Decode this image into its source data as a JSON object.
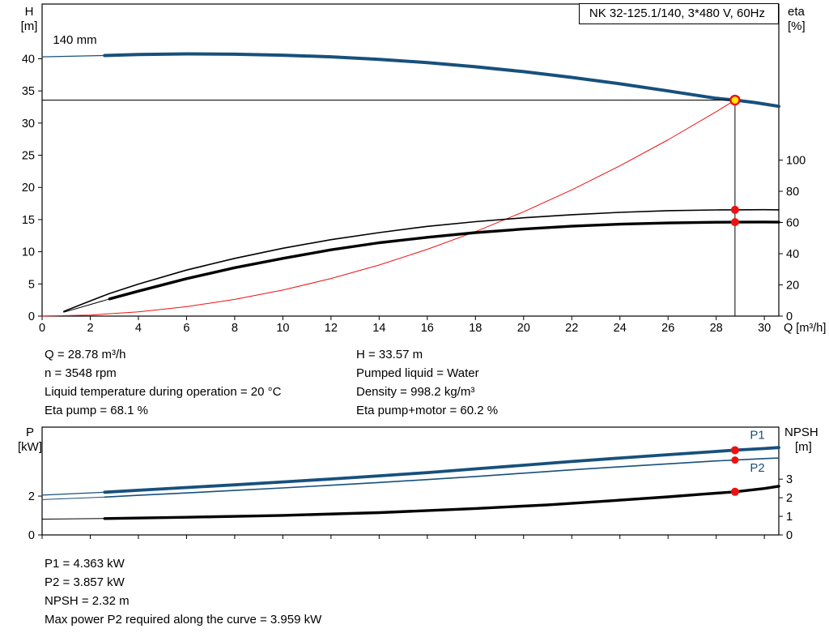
{
  "header": {
    "title_box": "NK 32-125.1/140, 3*480 V, 60Hz"
  },
  "info_left": [
    "Q = 28.78 m³/h",
    "n = 3548 rpm",
    "Liquid temperature during operation = 20 °C",
    "Eta pump = 68.1 %"
  ],
  "info_right": [
    "H = 33.57 m",
    "Pumped liquid = Water",
    "Density = 998.2 kg/m³",
    "Eta pump+motor = 60.2 %"
  ],
  "results": [
    "P1 = 4.363 kW",
    "P2 = 3.857 kW",
    "NPSH = 2.32 m",
    "Max power P2 required along the curve = 3.959 kW"
  ],
  "colors": {
    "curve_blue": "#17507c",
    "curve_black": "#000000",
    "curve_red": "#ee1111",
    "marker_red": "#ee1111",
    "marker_yellow": "#ffe800"
  },
  "chart_data": [
    {
      "name": "hq-eta-chart",
      "type": "line",
      "xlabel": "Q [m³/h]",
      "ylabel_left": [
        "H",
        "[m]"
      ],
      "ylabel_right": [
        "eta",
        "[%]"
      ],
      "xlim": [
        0,
        30.6
      ],
      "ylim_left": [
        0,
        48.5
      ],
      "ylim_right": [
        0,
        200
      ],
      "x_ticks": [
        0,
        2,
        4,
        6,
        8,
        10,
        12,
        14,
        16,
        18,
        20,
        22,
        24,
        26,
        28,
        30
      ],
      "x_tick_labels": true,
      "y_ticks_left": [
        0,
        5,
        10,
        15,
        20,
        25,
        30,
        35,
        40
      ],
      "y_ticks_right": [
        0,
        20,
        40,
        60,
        80,
        100
      ],
      "crosshair": {
        "x": 28.78,
        "y": 33.57
      },
      "series": [
        {
          "name": "system-curve",
          "axis": "left",
          "color": "#ee1111",
          "width": 1,
          "x": [
            0,
            2,
            4,
            6,
            8,
            10,
            12,
            14,
            16,
            18,
            20,
            22,
            24,
            26,
            28,
            28.78
          ],
          "y": [
            0,
            0.16,
            0.65,
            1.46,
            2.59,
            4.05,
            5.84,
            7.94,
            10.38,
            13.13,
            16.21,
            19.62,
            23.35,
            27.4,
            31.77,
            33.57
          ]
        },
        {
          "name": "eta-pump-curve",
          "axis": "right",
          "color": "#000000",
          "width": 1.6,
          "x": [
            0.9,
            1.8,
            2.8,
            4,
            6,
            8,
            10,
            12,
            14,
            16,
            18,
            20,
            22,
            24,
            26,
            28,
            28.78,
            30,
            30.6
          ],
          "y": [
            3,
            8.5,
            14.5,
            20.5,
            29.5,
            37,
            43.5,
            49,
            53.5,
            57.5,
            60.5,
            63,
            65,
            66.5,
            67.6,
            68.05,
            68.1,
            68.2,
            68.1
          ]
        },
        {
          "name": "eta-pump-motor-lead",
          "axis": "right",
          "color": "#000000",
          "width": 1,
          "x": [
            0.9,
            1.8,
            2.8
          ],
          "y": [
            2.5,
            6.5,
            11
          ]
        },
        {
          "name": "eta-pump-motor-curve",
          "axis": "right",
          "color": "#000000",
          "width": 3.4,
          "x": [
            2.8,
            4,
            6,
            8,
            10,
            12,
            14,
            16,
            18,
            20,
            22,
            24,
            26,
            28,
            28.78,
            30,
            30.6
          ],
          "y": [
            11,
            16,
            24,
            31,
            37,
            42.5,
            47,
            50.5,
            53.5,
            55.8,
            57.6,
            58.9,
            59.7,
            60.15,
            60.2,
            60.3,
            60.2
          ]
        },
        {
          "name": "pump-curve-lead",
          "axis": "left",
          "color": "#17507c",
          "width": 1.2,
          "x": [
            0,
            2.6
          ],
          "y": [
            40.3,
            40.5
          ]
        },
        {
          "name": "pump-curve-140mm",
          "axis": "left",
          "color": "#17507c",
          "width": 4,
          "x": [
            2.6,
            4,
            6,
            8,
            10,
            12,
            14,
            16,
            18,
            20,
            22,
            24,
            26,
            28,
            28.78,
            29.6,
            30.6
          ],
          "y": [
            40.5,
            40.65,
            40.75,
            40.7,
            40.55,
            40.3,
            39.9,
            39.4,
            38.75,
            38.0,
            37.1,
            36.1,
            35.0,
            33.85,
            33.57,
            33.2,
            32.6
          ]
        }
      ],
      "markers": [
        {
          "name": "eta-pump-point",
          "axis": "right",
          "x": 28.78,
          "y": 68.1,
          "fill": "#ee1111",
          "r": 5
        },
        {
          "name": "eta-pump-motor-point",
          "axis": "right",
          "x": 28.78,
          "y": 60.2,
          "fill": "#ee1111",
          "r": 5
        },
        {
          "name": "duty-point",
          "axis": "left",
          "x": 28.78,
          "y": 33.57,
          "fill": "#ffe800",
          "stroke": "#ee1111",
          "stroke_width": 2.4,
          "r": 5.5,
          "interactable": true
        }
      ],
      "annotations": [
        {
          "name": "impeller-size-label",
          "text": "140 mm",
          "axis": "left",
          "x": 0.45,
          "y": 42.3,
          "color": "#000000"
        }
      ]
    },
    {
      "name": "power-npsh-chart",
      "type": "line",
      "xlabel": "",
      "ylabel_left": [
        "P",
        "[kW]"
      ],
      "ylabel_right": [
        "NPSH",
        "[m]"
      ],
      "xlim": [
        0,
        30.6
      ],
      "ylim_left": [
        0,
        5.55
      ],
      "ylim_right": [
        0,
        5.8
      ],
      "x_ticks": [
        0,
        2,
        4,
        6,
        8,
        10,
        12,
        14,
        16,
        18,
        20,
        22,
        24,
        26,
        28,
        30
      ],
      "x_tick_labels": false,
      "y_ticks_left": [
        0,
        2
      ],
      "y_ticks_right": [
        0,
        1,
        2,
        3
      ],
      "series": [
        {
          "name": "p1-curve-lead",
          "axis": "left",
          "color": "#17507c",
          "width": 1.2,
          "x": [
            0,
            2.6
          ],
          "y": [
            2.05,
            2.2
          ]
        },
        {
          "name": "p1-curve",
          "axis": "left",
          "color": "#17507c",
          "width": 3.8,
          "x": [
            2.6,
            4,
            6,
            8,
            10,
            12,
            14,
            16,
            18,
            20,
            22,
            24,
            26,
            28,
            28.78,
            30,
            30.6
          ],
          "y": [
            2.2,
            2.3,
            2.44,
            2.58,
            2.73,
            2.88,
            3.04,
            3.21,
            3.4,
            3.59,
            3.78,
            3.96,
            4.13,
            4.3,
            4.363,
            4.45,
            4.5
          ]
        },
        {
          "name": "p2-curve-lead",
          "axis": "left",
          "color": "#17507c",
          "width": 1,
          "x": [
            0,
            2.6
          ],
          "y": [
            1.82,
            1.95
          ]
        },
        {
          "name": "p2-curve",
          "axis": "left",
          "color": "#17507c",
          "width": 1.6,
          "x": [
            2.6,
            4,
            6,
            8,
            10,
            12,
            14,
            16,
            18,
            20,
            22,
            24,
            26,
            28,
            28.78,
            30,
            30.6
          ],
          "y": [
            1.95,
            2.04,
            2.16,
            2.29,
            2.42,
            2.56,
            2.7,
            2.85,
            3.01,
            3.18,
            3.35,
            3.51,
            3.66,
            3.81,
            3.857,
            3.93,
            3.959
          ]
        },
        {
          "name": "npsh-curve-lead",
          "axis": "right",
          "color": "#000000",
          "width": 1,
          "x": [
            0,
            2.6
          ],
          "y": [
            0.85,
            0.88
          ]
        },
        {
          "name": "npsh-curve",
          "axis": "right",
          "color": "#000000",
          "width": 3.4,
          "x": [
            2.6,
            6,
            10,
            14,
            18,
            21,
            24,
            26,
            27.5,
            28.78,
            30,
            30.6
          ],
          "y": [
            0.88,
            0.95,
            1.05,
            1.2,
            1.42,
            1.62,
            1.87,
            2.05,
            2.2,
            2.32,
            2.5,
            2.62
          ]
        }
      ],
      "markers": [
        {
          "name": "p1-point",
          "axis": "left",
          "x": 28.78,
          "y": 4.363,
          "fill": "#ee1111",
          "r": 5
        },
        {
          "name": "p2-point",
          "axis": "left",
          "x": 28.78,
          "y": 3.857,
          "fill": "#ee1111",
          "r": 4.5
        },
        {
          "name": "npsh-point",
          "axis": "right",
          "x": 28.78,
          "y": 2.32,
          "fill": "#ee1111",
          "r": 5
        }
      ],
      "annotations": [
        {
          "name": "p1-curve-label",
          "text": "P1",
          "axis": "left",
          "x": 29.4,
          "y": 4.95,
          "color": "#17507c"
        },
        {
          "name": "p2-curve-label",
          "text": "P2",
          "axis": "left",
          "x": 29.4,
          "y": 3.25,
          "color": "#17507c"
        }
      ]
    }
  ]
}
